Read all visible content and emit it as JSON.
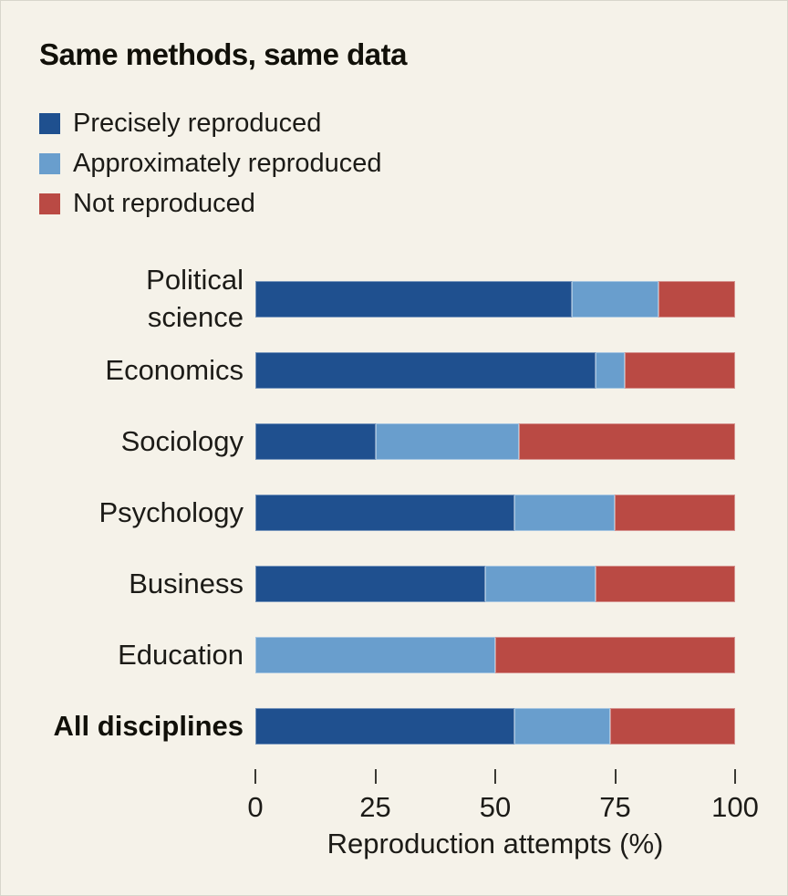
{
  "title": "Same methods, same data",
  "colors": {
    "background": "#f5f2e9",
    "precisely": "#1f508f",
    "approximately": "#699ecd",
    "not_reproduced": "#ba4a44",
    "text": "#1c1b17"
  },
  "legend": {
    "items": [
      {
        "label": "Precisely reproduced",
        "color": "#1f508f"
      },
      {
        "label": "Approximately reproduced",
        "color": "#699ecd"
      },
      {
        "label": "Not reproduced",
        "color": "#ba4a44"
      }
    ]
  },
  "rows": [
    {
      "label": "Political science",
      "lines": "Political\nscience",
      "bold": false
    },
    {
      "label": "Economics",
      "lines": "Economics",
      "bold": false
    },
    {
      "label": "Sociology",
      "lines": "Sociology",
      "bold": false
    },
    {
      "label": "Psychology",
      "lines": "Psychology",
      "bold": false
    },
    {
      "label": "Business",
      "lines": "Business",
      "bold": false
    },
    {
      "label": "Education",
      "lines": "Education",
      "bold": false
    },
    {
      "label": "All disciplines",
      "lines": "All disciplines",
      "bold": true
    }
  ],
  "chart_data": {
    "type": "bar",
    "orientation": "horizontal",
    "stacked": true,
    "title": "Same methods, same data",
    "xlabel": "Reproduction attempts (%)",
    "xlim": [
      0,
      100
    ],
    "x_ticks": [
      0,
      25,
      50,
      75,
      100
    ],
    "grid": false,
    "legend_position": "top-left",
    "categories": [
      "Political science",
      "Economics",
      "Sociology",
      "Psychology",
      "Business",
      "Education",
      "All disciplines"
    ],
    "series": [
      {
        "name": "Precisely reproduced",
        "color": "#1f508f",
        "values": [
          66,
          71,
          25,
          54,
          48,
          0,
          54
        ]
      },
      {
        "name": "Approximately reproduced",
        "color": "#699ecd",
        "values": [
          18,
          6,
          30,
          21,
          23,
          50,
          20
        ]
      },
      {
        "name": "Not reproduced",
        "color": "#ba4a44",
        "values": [
          16,
          23,
          45,
          25,
          29,
          50,
          26
        ]
      }
    ]
  }
}
